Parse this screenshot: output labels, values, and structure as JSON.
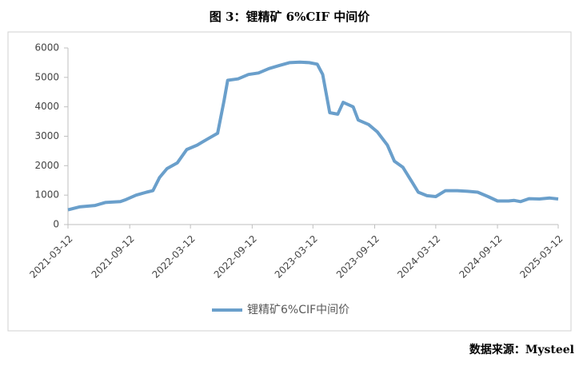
{
  "chart_data": {
    "type": "line",
    "title": "图 3：锂精矿 6%CIF 中间价",
    "source": "数据来源：Mysteel",
    "x": [
      "2021-03-12",
      "2021-04-15",
      "2021-06-01",
      "2021-07-01",
      "2021-08-15",
      "2021-09-01",
      "2021-10-01",
      "2021-11-01",
      "2021-11-20",
      "2021-12-10",
      "2022-01-01",
      "2022-02-01",
      "2022-03-01",
      "2022-04-01",
      "2022-05-01",
      "2022-06-01",
      "2022-06-20",
      "2022-07-01",
      "2022-08-01",
      "2022-09-01",
      "2022-10-01",
      "2022-11-01",
      "2022-12-01",
      "2023-01-01",
      "2023-02-01",
      "2023-03-01",
      "2023-03-25",
      "2023-04-10",
      "2023-05-01",
      "2023-05-25",
      "2023-06-10",
      "2023-07-10",
      "2023-07-25",
      "2023-08-25",
      "2023-09-20",
      "2023-10-20",
      "2023-11-10",
      "2023-12-05",
      "2024-01-01",
      "2024-01-20",
      "2024-02-15",
      "2024-03-12",
      "2024-04-10",
      "2024-05-15",
      "2024-06-15",
      "2024-07-15",
      "2024-08-15",
      "2024-09-12",
      "2024-10-15",
      "2024-11-01",
      "2024-11-20",
      "2024-12-15",
      "2025-01-15",
      "2025-02-15",
      "2025-03-12"
    ],
    "series": [
      {
        "name": "锂精矿6%CIF中间价",
        "color": "#6a9fcb",
        "values": [
          500,
          600,
          650,
          750,
          780,
          850,
          1000,
          1100,
          1150,
          1600,
          1900,
          2100,
          2550,
          2700,
          2900,
          3100,
          4200,
          4900,
          4950,
          5100,
          5150,
          5300,
          5400,
          5500,
          5520,
          5500,
          5450,
          5100,
          3800,
          3750,
          4150,
          4000,
          3550,
          3400,
          3150,
          2700,
          2150,
          1950,
          1450,
          1100,
          980,
          950,
          1150,
          1150,
          1130,
          1100,
          950,
          800,
          800,
          820,
          780,
          880,
          870,
          900,
          870
        ]
      }
    ],
    "xlim": [
      "2021-03-12",
      "2025-03-12"
    ],
    "xticks": [
      "2021-03-12",
      "2021-09-12",
      "2022-03-12",
      "2022-09-12",
      "2023-03-12",
      "2023-09-12",
      "2024-03-12",
      "2024-09-12",
      "2025-03-12"
    ],
    "ylim": [
      0,
      6000
    ],
    "yticks": [
      0,
      1000,
      2000,
      3000,
      4000,
      5000,
      6000
    ],
    "grid": false,
    "legend": "bottom"
  }
}
